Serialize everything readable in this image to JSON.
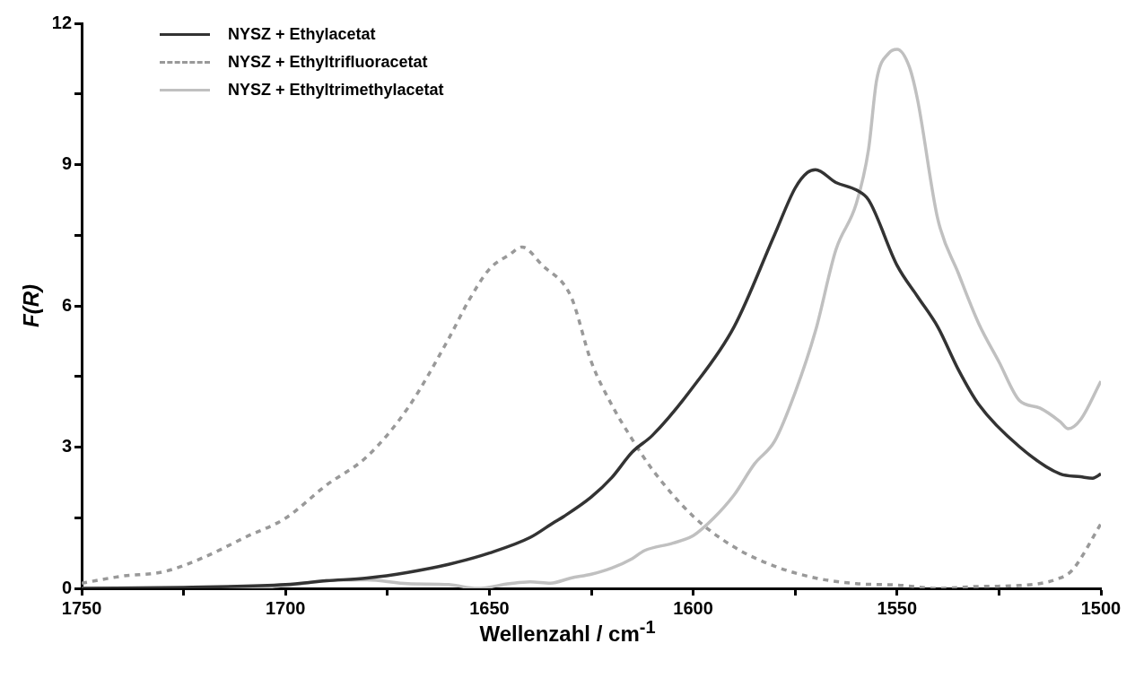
{
  "chart_data": {
    "type": "line",
    "xlabel": "Wellenzahl / cm$^{-1}$",
    "ylabel": "F(R)",
    "xlim": [
      1750,
      1500
    ],
    "ylim": [
      0,
      12
    ],
    "xticks": [
      1750,
      {
        "value": 1725,
        "label": null
      },
      1700,
      {
        "value": 1675,
        "label": null
      },
      1650,
      {
        "value": 1625,
        "label": null
      },
      1600,
      {
        "value": 1575,
        "label": null
      },
      1550,
      {
        "value": 1525,
        "label": null
      },
      1500
    ],
    "yticks": [
      0,
      {
        "value": 1.5,
        "label": null
      },
      3,
      {
        "value": 4.5,
        "label": null
      },
      6,
      {
        "value": 7.5,
        "label": null
      },
      9,
      {
        "value": 10.5,
        "label": null
      },
      12
    ],
    "grid": false,
    "legend": "top left",
    "marker": "none",
    "series": [
      {
        "name": "NYSZ + Ethylacetat",
        "color": "#333333",
        "line_style": "solid",
        "x": [
          1750,
          1725,
          1700,
          1690,
          1680,
          1670,
          1660,
          1650,
          1640,
          1634,
          1631.7,
          1625,
          1620,
          1615,
          1610,
          1600,
          1590,
          1580,
          1575,
          1572,
          1570,
          1565,
          1560,
          1557,
          1550,
          1545,
          1540,
          1535,
          1530,
          1520,
          1510,
          1505,
          1502,
          1500
        ],
        "values": [
          0,
          0.02,
          0.08,
          0.16,
          0.22,
          0.34,
          0.51,
          0.75,
          1.08,
          1.41,
          1.53,
          1.94,
          2.35,
          2.89,
          3.25,
          4.28,
          5.55,
          7.52,
          8.5,
          8.83,
          8.89,
          8.62,
          8.46,
          8.25,
          6.86,
          6.2,
          5.55,
          4.65,
          3.91,
          3.01,
          2.43,
          2.37,
          2.34,
          2.43
        ]
      },
      {
        "name": "NYSZ + Ethyltrifluoracetat",
        "color": "#999999",
        "line_style": "dashed",
        "x": [
          1750,
          1740,
          1730,
          1720,
          1710,
          1700,
          1690,
          1680,
          1670,
          1660,
          1655,
          1650,
          1645,
          1642,
          1637,
          1630,
          1625,
          1620,
          1615,
          1610,
          1600,
          1590,
          1580,
          1570,
          1560,
          1550,
          1540,
          1530,
          1520,
          1510,
          1507,
          1500
        ],
        "values": [
          0.11,
          0.26,
          0.35,
          0.66,
          1.08,
          1.49,
          2.19,
          2.8,
          3.83,
          5.3,
          6.12,
          6.78,
          7.09,
          7.25,
          6.86,
          6.2,
          4.81,
          3.9,
          3.17,
          2.52,
          1.53,
          0.88,
          0.47,
          0.22,
          0.1,
          0.07,
          0,
          0.04,
          0.06,
          0.22,
          0.39,
          1.37
        ]
      },
      {
        "name": "NYSZ + Ethyltrimethylacetat",
        "color": "#c0c0c0",
        "line_style": "solid",
        "x": [
          1750,
          1710,
          1700,
          1690,
          1680,
          1670,
          1660,
          1653,
          1645,
          1640,
          1635,
          1630,
          1625,
          1620,
          1615,
          1612,
          1605,
          1600,
          1595,
          1590,
          1585,
          1580,
          1575,
          1570,
          1565,
          1560,
          1557,
          1555,
          1552,
          1550,
          1547,
          1545,
          1540,
          1535,
          1530,
          1525,
          1520,
          1515,
          1510,
          1508,
          1505,
          1500
        ],
        "values": [
          0,
          0,
          0.06,
          0.16,
          0.18,
          0.1,
          0.08,
          0,
          0.1,
          0.14,
          0.11,
          0.22,
          0.3,
          0.43,
          0.63,
          0.8,
          0.96,
          1.12,
          1.49,
          1.98,
          2.64,
          3.13,
          4.16,
          5.47,
          7.19,
          8.17,
          9.32,
          10.8,
          11.37,
          11.45,
          11.08,
          10.39,
          7.84,
          6.7,
          5.63,
          4.81,
          3.99,
          3.83,
          3.54,
          3.39,
          3.58,
          4.4
        ]
      }
    ]
  }
}
